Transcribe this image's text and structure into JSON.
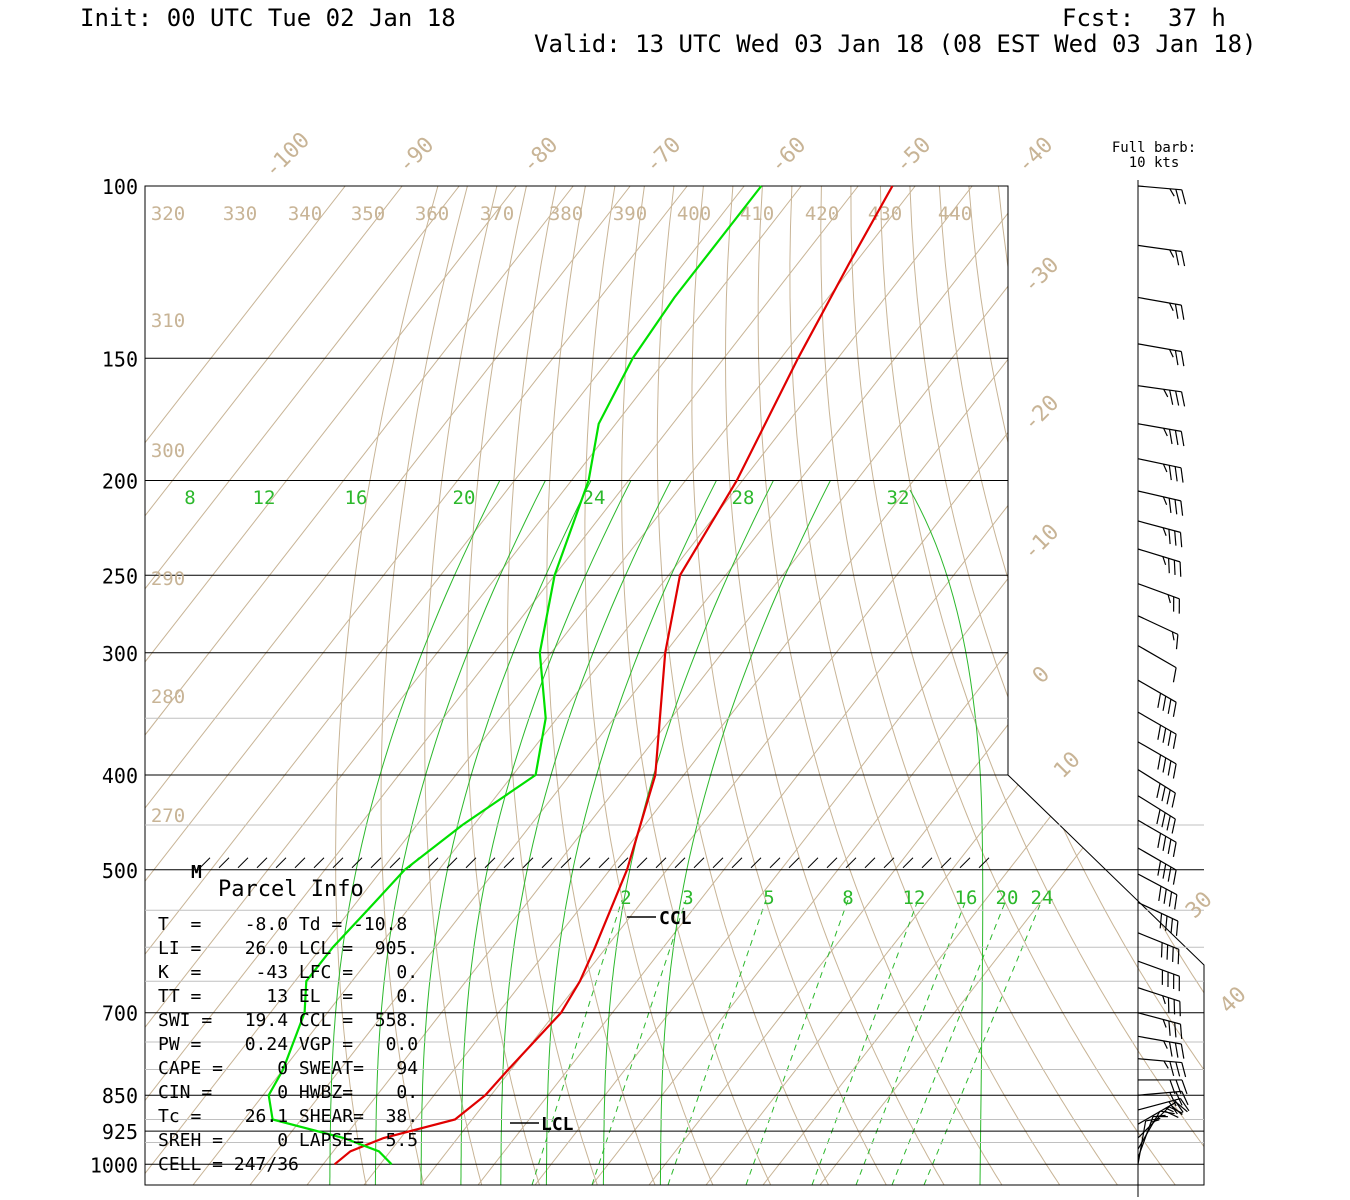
{
  "header": {
    "init": "Init: 00 UTC Tue 02 Jan 18",
    "fcst_label": "Fcst:",
    "fcst_value": "37 h",
    "valid": "Valid: 13 UTC Wed 03 Jan 18 (08 EST Wed 03 Jan 18)"
  },
  "barb_legend": {
    "line1": "Full barb:",
    "line2": "10 kts"
  },
  "colors": {
    "temperature": "#e00000",
    "dewpoint": "#00e000",
    "isotherm": "#c8b496",
    "mixing_ratio": "#2cb82c",
    "frame": "#000000"
  },
  "chart_data": {
    "type": "line",
    "title": "",
    "ylabel": "",
    "pressure_ticks": [
      "100",
      "150",
      "200",
      "250",
      "300",
      "400",
      "500",
      "700",
      "850",
      "925",
      "1000"
    ],
    "pressure_values": [
      100,
      150,
      200,
      250,
      300,
      400,
      500,
      700,
      850,
      925,
      1000
    ],
    "isotherm_labels": [
      "-100",
      "-90",
      "-80",
      "-70",
      "-60",
      "-50",
      "-40",
      "-30",
      "-20",
      "-10",
      "0",
      "10",
      "30",
      "40"
    ],
    "theta_labels": [
      "320",
      "330",
      "340",
      "350",
      "360",
      "370",
      "380",
      "390",
      "400",
      "410",
      "420",
      "430",
      "440",
      "310",
      "300",
      "290",
      "280",
      "270"
    ],
    "theta_e_labels": [
      "8",
      "12",
      "16",
      "20",
      "24",
      "28",
      "32"
    ],
    "mixing_ratio_labels": [
      "2",
      "3",
      "5",
      "8",
      "12",
      "16",
      "20",
      "24"
    ],
    "series": [
      {
        "name": "",
        "points": [
          [
            1000,
            -28
          ],
          [
            970,
            -27
          ],
          [
            940,
            -23
          ],
          [
            900,
            -13
          ],
          [
            850,
            -11
          ],
          [
            800,
            -10.5
          ],
          [
            700,
            -9
          ],
          [
            650,
            -10
          ],
          [
            600,
            -12
          ],
          [
            500,
            -17
          ],
          [
            400,
            -25
          ],
          [
            300,
            -40
          ],
          [
            250,
            -48
          ],
          [
            200,
            -51
          ],
          [
            150,
            -57
          ],
          [
            120,
            -61
          ],
          [
            100,
            -64
          ]
        ]
      },
      {
        "name": "",
        "points": [
          [
            1000,
            -18
          ],
          [
            970,
            -22
          ],
          [
            940,
            -30
          ],
          [
            900,
            -45
          ],
          [
            850,
            -49
          ],
          [
            800,
            -50
          ],
          [
            700,
            -54
          ],
          [
            650,
            -58
          ],
          [
            600,
            -58
          ],
          [
            550,
            -57
          ],
          [
            500,
            -56
          ],
          [
            450,
            -52
          ],
          [
            400,
            -46
          ],
          [
            350,
            -52
          ],
          [
            300,
            -62
          ],
          [
            250,
            -70
          ],
          [
            200,
            -77
          ],
          [
            175,
            -83
          ],
          [
            150,
            -86
          ],
          [
            130,
            -87
          ],
          [
            100,
            -87
          ]
        ]
      }
    ],
    "markers": [
      "M",
      "CCL",
      "LCL"
    ]
  },
  "parcel_info": {
    "title": "Parcel Info",
    "rows": [
      "T  =    -8.0 Td = -10.8",
      "LI =    26.0 LCL =  905.",
      "K  =     -43 LFC =    0.",
      "TT =      13 EL  =    0.",
      "SWI =   19.4 CCL =  558.",
      "PW =    0.24 VGP =   0.0",
      "CAPE =     0 SWEAT=   94",
      "CIN =      0 HWBZ=    0.",
      "Tc =    26.1 SHEAR=  38.",
      "SREH =     0 LAPSE=  5.5",
      "CELL = 247/36"
    ]
  },
  "wind_barbs": [
    {
      "p": 100,
      "speed": 25,
      "dir": 275
    },
    {
      "p": 115,
      "speed": 25,
      "dir": 278
    },
    {
      "p": 130,
      "speed": 25,
      "dir": 280
    },
    {
      "p": 145,
      "speed": 25,
      "dir": 280
    },
    {
      "p": 160,
      "speed": 35,
      "dir": 278
    },
    {
      "p": 175,
      "speed": 35,
      "dir": 280
    },
    {
      "p": 190,
      "speed": 35,
      "dir": 282
    },
    {
      "p": 205,
      "speed": 35,
      "dir": 283
    },
    {
      "p": 220,
      "speed": 35,
      "dir": 285
    },
    {
      "p": 235,
      "speed": 35,
      "dir": 287
    },
    {
      "p": 255,
      "speed": 25,
      "dir": 290
    },
    {
      "p": 275,
      "speed": 15,
      "dir": 295
    },
    {
      "p": 295,
      "speed": 10,
      "dir": 300
    },
    {
      "p": 320,
      "speed": 40,
      "dir": 300
    },
    {
      "p": 345,
      "speed": 40,
      "dir": 300
    },
    {
      "p": 370,
      "speed": 40,
      "dir": 300
    },
    {
      "p": 395,
      "speed": 40,
      "dir": 302
    },
    {
      "p": 420,
      "speed": 40,
      "dir": 302
    },
    {
      "p": 445,
      "speed": 40,
      "dir": 300
    },
    {
      "p": 475,
      "speed": 40,
      "dir": 300
    },
    {
      "p": 505,
      "speed": 40,
      "dir": 298
    },
    {
      "p": 540,
      "speed": 40,
      "dir": 295
    },
    {
      "p": 580,
      "speed": 40,
      "dir": 292
    },
    {
      "p": 620,
      "speed": 40,
      "dir": 290
    },
    {
      "p": 660,
      "speed": 35,
      "dir": 288
    },
    {
      "p": 700,
      "speed": 35,
      "dir": 285
    },
    {
      "p": 740,
      "speed": 35,
      "dir": 280
    },
    {
      "p": 780,
      "speed": 35,
      "dir": 275
    },
    {
      "p": 820,
      "speed": 30,
      "dir": 270
    },
    {
      "p": 850,
      "speed": 30,
      "dir": 265
    },
    {
      "p": 880,
      "speed": 30,
      "dir": 255
    },
    {
      "p": 910,
      "speed": 25,
      "dir": 240
    },
    {
      "p": 940,
      "speed": 20,
      "dir": 225
    },
    {
      "p": 965,
      "speed": 15,
      "dir": 210
    },
    {
      "p": 985,
      "speed": 15,
      "dir": 200
    },
    {
      "p": 1000,
      "speed": 10,
      "dir": 190
    }
  ]
}
